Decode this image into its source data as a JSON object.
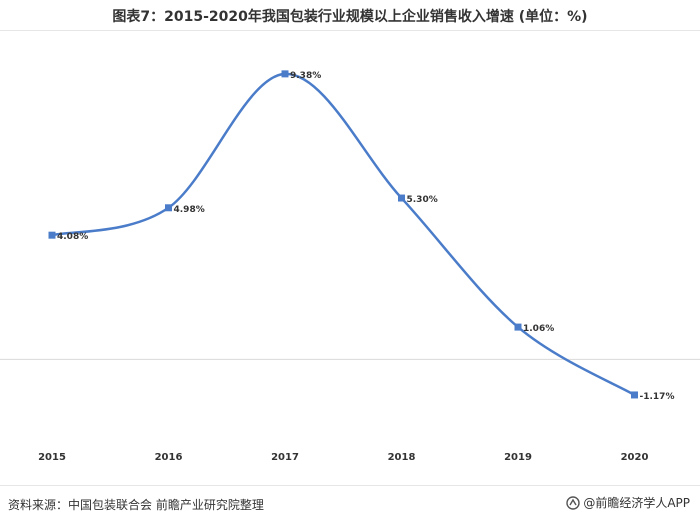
{
  "title": "图表7：2015-2020年我国包装行业规模以上企业销售收入增速 (单位：%)",
  "source": "资料来源：中国包装联合会 前瞻产业研究院整理",
  "brand": "@前瞻经济学人APP",
  "colors": {
    "line": "#4a7cc9",
    "marker": "#4a7cc9",
    "zero_line": "#d9d9d9",
    "text": "#333333"
  },
  "chart_data": {
    "type": "line",
    "title": "图表7：2015-2020年我国包装行业规模以上企业销售收入增速 (单位：%)",
    "categories": [
      "2015",
      "2016",
      "2017",
      "2018",
      "2019",
      "2020"
    ],
    "series": [
      {
        "values": [
          4.08,
          4.98,
          9.38,
          5.3,
          1.06,
          -1.17
        ],
        "labels": [
          "4.08%",
          "4.98%",
          "9.38%",
          "5.30%",
          "1.06%",
          "-1.17%"
        ]
      }
    ],
    "smooth": true,
    "ylim": [
      -1.73,
      10.0
    ],
    "y_axis_visible": false,
    "grid": false,
    "legend": "none"
  }
}
